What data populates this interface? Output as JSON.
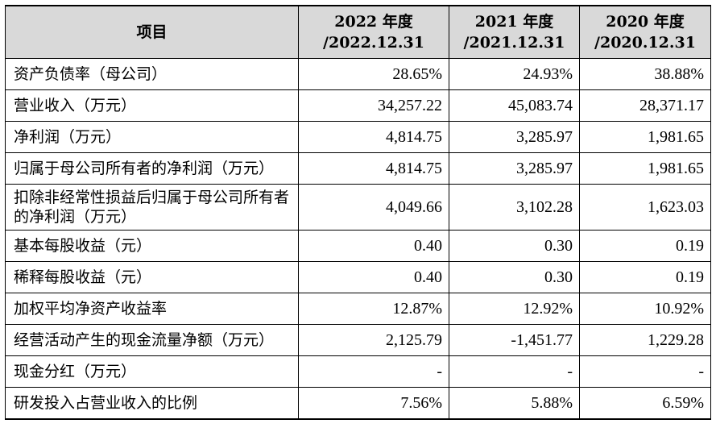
{
  "table": {
    "header": {
      "item": "项目",
      "columns": [
        {
          "line1": "2022 年度",
          "line2": "/2022.12.31"
        },
        {
          "line1": "2021 年度",
          "line2": "/2021.12.31"
        },
        {
          "line1": "2020 年度",
          "line2": "/2020.12.31"
        }
      ]
    },
    "rows": [
      {
        "label": "资产负债率（母公司）",
        "values": [
          "28.65%",
          "24.93%",
          "38.88%"
        ]
      },
      {
        "label": "营业收入（万元）",
        "values": [
          "34,257.22",
          "45,083.74",
          "28,371.17"
        ]
      },
      {
        "label": "净利润（万元）",
        "values": [
          "4,814.75",
          "3,285.97",
          "1,981.65"
        ]
      },
      {
        "label": "归属于母公司所有者的净利润（万元）",
        "values": [
          "4,814.75",
          "3,285.97",
          "1,981.65"
        ]
      },
      {
        "label": "扣除非经常性损益后归属于母公司所有者的净利润（万元）",
        "values": [
          "4,049.66",
          "3,102.28",
          "1,623.03"
        ]
      },
      {
        "label": "基本每股收益（元）",
        "values": [
          "0.40",
          "0.30",
          "0.19"
        ]
      },
      {
        "label": "稀释每股收益（元）",
        "values": [
          "0.40",
          "0.30",
          "0.19"
        ]
      },
      {
        "label": "加权平均净资产收益率",
        "values": [
          "12.87%",
          "12.92%",
          "10.92%"
        ]
      },
      {
        "label": "经营活动产生的现金流量净额（万元）",
        "values": [
          "2,125.79",
          "-1,451.77",
          "1,229.28"
        ]
      },
      {
        "label": "现金分红（万元）",
        "values": [
          "-",
          "-",
          "-"
        ]
      },
      {
        "label": "研发投入占营业收入的比例",
        "values": [
          "7.56%",
          "5.88%",
          "6.59%"
        ]
      }
    ]
  }
}
